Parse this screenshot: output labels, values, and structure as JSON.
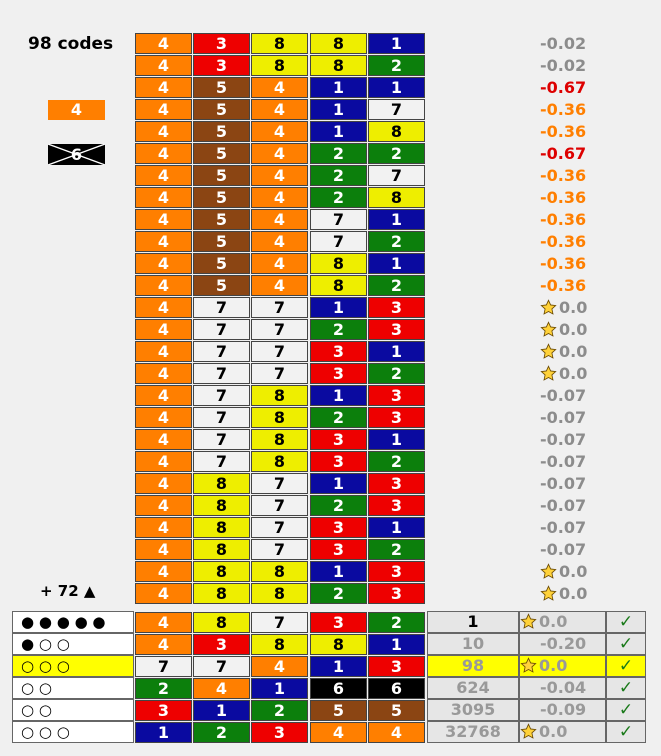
{
  "header": {
    "codes_count": "98 codes",
    "more": "+ 72 ▲"
  },
  "pegs_side": {
    "included": "4",
    "excluded": "6"
  },
  "colors": {
    "1": {
      "bg": "#0a0aa0",
      "fg": "#ffffff"
    },
    "2": {
      "bg": "#0c7f0c",
      "fg": "#ffffff"
    },
    "3": {
      "bg": "#ee0000",
      "fg": "#ffffff"
    },
    "4": {
      "bg": "#ff7f00",
      "fg": "#ffffff"
    },
    "5": {
      "bg": "#8b4513",
      "fg": "#ffffff"
    },
    "6": {
      "bg": "#000000",
      "fg": "#ffffff"
    },
    "7": {
      "bg": "#f2f2f2",
      "fg": "#000000"
    },
    "8": {
      "bg": "#eeee00",
      "fg": "#000000"
    }
  },
  "score_colors": {
    "gray": "#8c8c8c",
    "red": "#dd0000",
    "orange": "#ff7f00"
  },
  "codes": [
    {
      "pegs": [
        "4",
        "3",
        "8",
        "8",
        "1"
      ],
      "score": "-0.02",
      "color": "gray",
      "star": false
    },
    {
      "pegs": [
        "4",
        "3",
        "8",
        "8",
        "2"
      ],
      "score": "-0.02",
      "color": "gray",
      "star": false
    },
    {
      "pegs": [
        "4",
        "5",
        "4",
        "1",
        "1"
      ],
      "score": "-0.67",
      "color": "red",
      "star": false
    },
    {
      "pegs": [
        "4",
        "5",
        "4",
        "1",
        "7"
      ],
      "score": "-0.36",
      "color": "orange",
      "star": false
    },
    {
      "pegs": [
        "4",
        "5",
        "4",
        "1",
        "8"
      ],
      "score": "-0.36",
      "color": "orange",
      "star": false
    },
    {
      "pegs": [
        "4",
        "5",
        "4",
        "2",
        "2"
      ],
      "score": "-0.67",
      "color": "red",
      "star": false
    },
    {
      "pegs": [
        "4",
        "5",
        "4",
        "2",
        "7"
      ],
      "score": "-0.36",
      "color": "orange",
      "star": false
    },
    {
      "pegs": [
        "4",
        "5",
        "4",
        "2",
        "8"
      ],
      "score": "-0.36",
      "color": "orange",
      "star": false
    },
    {
      "pegs": [
        "4",
        "5",
        "4",
        "7",
        "1"
      ],
      "score": "-0.36",
      "color": "orange",
      "star": false
    },
    {
      "pegs": [
        "4",
        "5",
        "4",
        "7",
        "2"
      ],
      "score": "-0.36",
      "color": "orange",
      "star": false
    },
    {
      "pegs": [
        "4",
        "5",
        "4",
        "8",
        "1"
      ],
      "score": "-0.36",
      "color": "orange",
      "star": false
    },
    {
      "pegs": [
        "4",
        "5",
        "4",
        "8",
        "2"
      ],
      "score": "-0.36",
      "color": "orange",
      "star": false
    },
    {
      "pegs": [
        "4",
        "7",
        "7",
        "1",
        "3"
      ],
      "score": "0.0",
      "color": "gray",
      "star": true
    },
    {
      "pegs": [
        "4",
        "7",
        "7",
        "2",
        "3"
      ],
      "score": "0.0",
      "color": "gray",
      "star": true
    },
    {
      "pegs": [
        "4",
        "7",
        "7",
        "3",
        "1"
      ],
      "score": "0.0",
      "color": "gray",
      "star": true
    },
    {
      "pegs": [
        "4",
        "7",
        "7",
        "3",
        "2"
      ],
      "score": "0.0",
      "color": "gray",
      "star": true
    },
    {
      "pegs": [
        "4",
        "7",
        "8",
        "1",
        "3"
      ],
      "score": "-0.07",
      "color": "gray",
      "star": false
    },
    {
      "pegs": [
        "4",
        "7",
        "8",
        "2",
        "3"
      ],
      "score": "-0.07",
      "color": "gray",
      "star": false
    },
    {
      "pegs": [
        "4",
        "7",
        "8",
        "3",
        "1"
      ],
      "score": "-0.07",
      "color": "gray",
      "star": false
    },
    {
      "pegs": [
        "4",
        "7",
        "8",
        "3",
        "2"
      ],
      "score": "-0.07",
      "color": "gray",
      "star": false
    },
    {
      "pegs": [
        "4",
        "8",
        "7",
        "1",
        "3"
      ],
      "score": "-0.07",
      "color": "gray",
      "star": false
    },
    {
      "pegs": [
        "4",
        "8",
        "7",
        "2",
        "3"
      ],
      "score": "-0.07",
      "color": "gray",
      "star": false
    },
    {
      "pegs": [
        "4",
        "8",
        "7",
        "3",
        "1"
      ],
      "score": "-0.07",
      "color": "gray",
      "star": false
    },
    {
      "pegs": [
        "4",
        "8",
        "7",
        "3",
        "2"
      ],
      "score": "-0.07",
      "color": "gray",
      "star": false
    },
    {
      "pegs": [
        "4",
        "8",
        "8",
        "1",
        "3"
      ],
      "score": "0.0",
      "color": "gray",
      "star": true
    },
    {
      "pegs": [
        "4",
        "8",
        "8",
        "2",
        "3"
      ],
      "score": "0.0",
      "color": "gray",
      "star": true
    }
  ],
  "history": [
    {
      "feedback": "●●●●●",
      "pegs": [
        "4",
        "8",
        "7",
        "3",
        "2"
      ],
      "count": "1",
      "count_color": "#000000",
      "score": "0.0",
      "star": true,
      "check": "✓",
      "highlight": false
    },
    {
      "feedback": "●○○",
      "pegs": [
        "4",
        "3",
        "8",
        "8",
        "1"
      ],
      "count": "10",
      "count_color": "#999999",
      "score": "-0.20",
      "star": false,
      "check": "✓",
      "highlight": false
    },
    {
      "feedback": "○○○",
      "pegs": [
        "7",
        "7",
        "4",
        "1",
        "3"
      ],
      "count": "98",
      "count_color": "#999999",
      "score": "0.0",
      "star": true,
      "check": "✓",
      "highlight": true
    },
    {
      "feedback": "○○",
      "pegs": [
        "2",
        "4",
        "1",
        "6",
        "6"
      ],
      "count": "624",
      "count_color": "#999999",
      "score": "-0.04",
      "star": false,
      "check": "✓",
      "highlight": false
    },
    {
      "feedback": "○○",
      "pegs": [
        "3",
        "1",
        "2",
        "5",
        "5"
      ],
      "count": "3095",
      "count_color": "#999999",
      "score": "-0.09",
      "star": false,
      "check": "✓",
      "highlight": false
    },
    {
      "feedback": "○○○",
      "pegs": [
        "1",
        "2",
        "3",
        "4",
        "4"
      ],
      "count": "32768",
      "count_color": "#999999",
      "score": "0.0",
      "star": true,
      "check": "✓",
      "highlight": false
    }
  ]
}
